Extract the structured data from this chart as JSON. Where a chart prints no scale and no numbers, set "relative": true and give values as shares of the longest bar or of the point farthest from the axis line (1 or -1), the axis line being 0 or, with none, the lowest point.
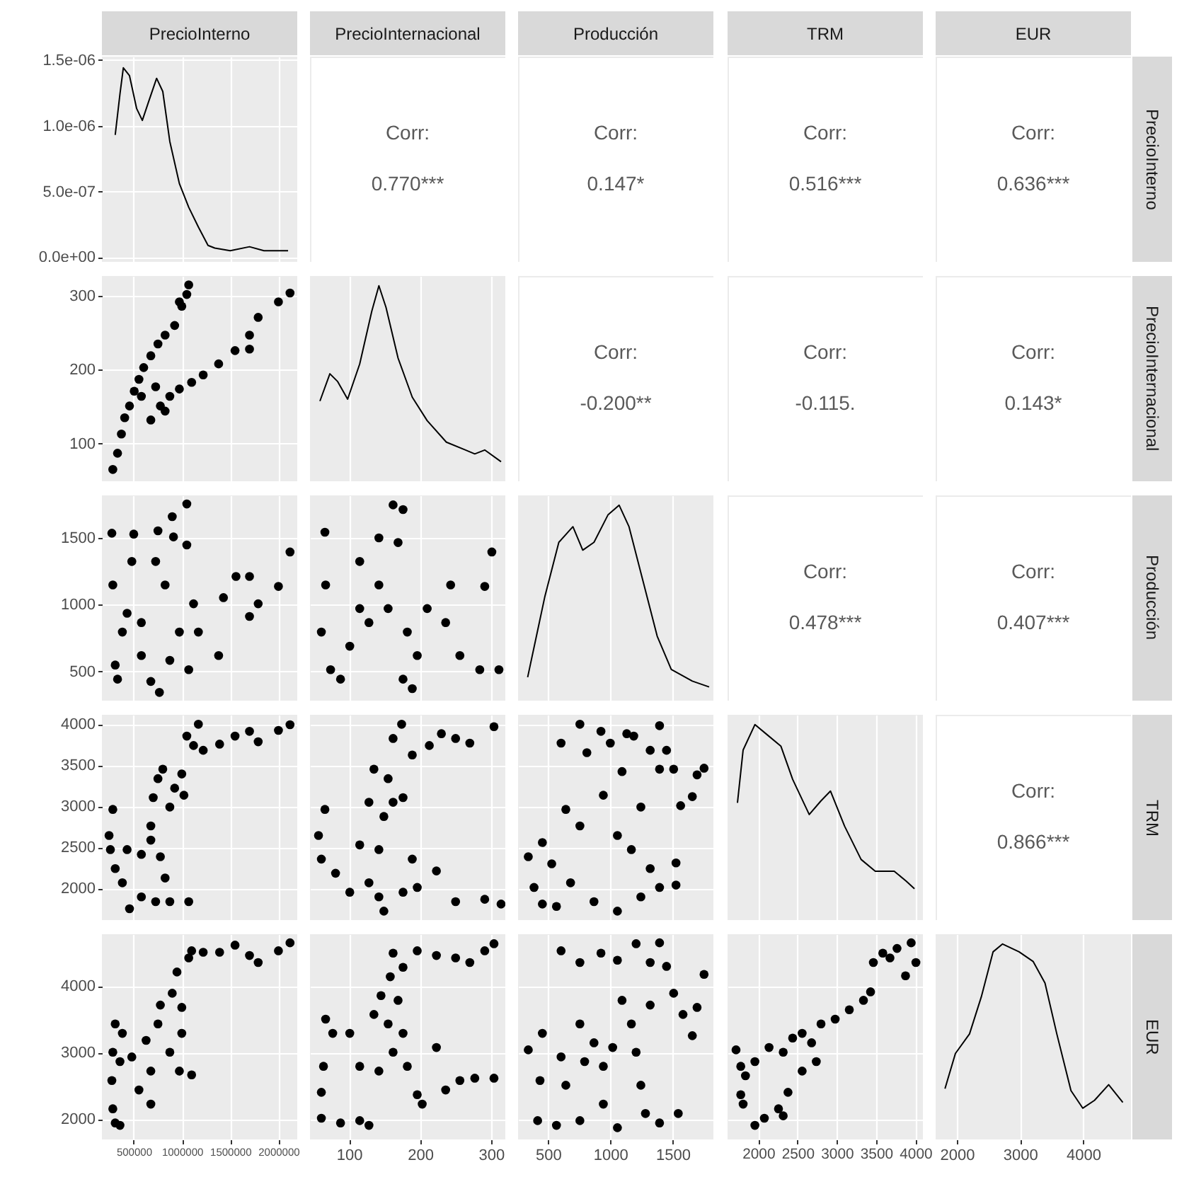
{
  "chart_data": [
    {
      "type": "line",
      "title": "PrecioInterno",
      "color": "#000000",
      "x": [
        308000,
        357000,
        392000,
        456000,
        530000,
        589000,
        653000,
        737000,
        801000,
        874000,
        973000,
        1070000,
        1170000,
        1270000,
        1340000,
        1500000,
        1700000,
        1850000,
        2040000,
        2100000
      ],
      "values": [
        9.3e-07,
        1.24e-06,
        1.44e-06,
        1.38e-06,
        1.13e-06,
        1.04e-06,
        1.18e-06,
        1.36e-06,
        1.26e-06,
        8.8e-07,
        5.6e-07,
        3.8e-07,
        2.3e-07,
        9e-08,
        7e-08,
        5e-08,
        8e-08,
        5e-08,
        5e-08,
        5e-08
      ],
      "xlim": [
        170000,
        2195000
      ],
      "ylim": [
        -3.5e-08,
        1.525e-06
      ],
      "xticks": [
        500000,
        1000000,
        1500000,
        2000000
      ],
      "yticks": [
        {
          "value": 0,
          "label": "0.0e+00"
        },
        {
          "value": 5e-07,
          "label": "5.0e-07"
        },
        {
          "value": 1e-06,
          "label": "1.0e-06"
        },
        {
          "value": 1.5e-06,
          "label": "1.5e-06"
        }
      ],
      "grid": true,
      "tick_labels": "y"
    },
    {
      "type": "other",
      "title": "PrecioInternacional",
      "annotations": [
        "Corr:",
        "0.770***"
      ]
    },
    {
      "type": "other",
      "title": "Producción",
      "annotations": [
        "Corr:",
        "0.147*"
      ]
    },
    {
      "type": "other",
      "title": "TRM",
      "annotations": [
        "Corr:",
        "0.516***"
      ]
    },
    {
      "type": "other",
      "title": "EUR",
      "y2label": "PrecioInterno",
      "annotations": [
        "Corr:",
        "0.636***"
      ]
    },
    {
      "type": "scatter",
      "marker": "circle",
      "color": "#000000",
      "x": [
        283000,
        332000,
        372000,
        406000,
        456000,
        505000,
        554000,
        603000,
        677000,
        751000,
        825000,
        924000,
        998000,
        1050000,
        1070000,
        973000,
        677000,
        776000,
        874000,
        973000,
        1100000,
        1220000,
        825000,
        579000,
        727000,
        1380000,
        1550000,
        1700000,
        1700000,
        1790000,
        2000000,
        2120000
      ],
      "values": [
        65,
        87,
        113,
        135,
        151,
        171,
        187,
        203,
        219,
        235,
        247,
        260,
        286,
        302,
        315,
        292,
        132,
        151,
        164,
        174,
        183,
        193,
        144,
        164,
        177,
        208,
        226,
        228,
        247,
        271,
        292,
        304
      ],
      "xlim": [
        170000,
        2195000
      ],
      "ylim": [
        49,
        327
      ],
      "xticks": [
        500000,
        1000000,
        1500000,
        2000000
      ],
      "yticks": [
        100,
        200,
        300
      ],
      "grid": true,
      "tick_labels": "y"
    },
    {
      "type": "line",
      "relative": true,
      "color": "#000000",
      "x": [
        59,
        73,
        84,
        98,
        115,
        132,
        142,
        152,
        169,
        189,
        210,
        237,
        264,
        277,
        291,
        314
      ],
      "values": [
        0.41,
        0.55,
        0.51,
        0.42,
        0.6,
        0.87,
        1,
        0.89,
        0.63,
        0.43,
        0.31,
        0.2,
        0.16,
        0.14,
        0.16,
        0.1
      ],
      "xlim": [
        45,
        320
      ],
      "xticks": [
        100,
        200,
        300
      ],
      "grid": "x",
      "tick_labels": false
    },
    {
      "type": "other",
      "annotations": [
        "Corr:",
        "-0.200**"
      ]
    },
    {
      "type": "other",
      "annotations": [
        "Corr:",
        "-0.115."
      ]
    },
    {
      "type": "other",
      "y2label": "PrecioInternacional",
      "annotations": [
        "Corr:",
        "0.143*"
      ]
    },
    {
      "type": "scatter",
      "marker": "circle",
      "color": "#000000",
      "x": [
        273000,
        500000,
        751000,
        899000,
        1050000,
        912000,
        1050000,
        283000,
        382000,
        308000,
        332000,
        579000,
        677000,
        766000,
        480000,
        727000,
        825000,
        579000,
        431000,
        973000,
        1120000,
        1170000,
        1070000,
        1380000,
        1430000,
        1560000,
        1700000,
        1790000,
        1700000,
        2000000,
        2120000,
        874000
      ],
      "values": [
        1535,
        1528,
        1553,
        1659,
        1754,
        1507,
        1447,
        1147,
        794,
        547,
        441,
        618,
        424,
        342,
        1323,
        1323,
        1147,
        865,
        935,
        794,
        1006,
        794,
        512,
        618,
        1052,
        1211,
        1211,
        1006,
        911,
        1136,
        1394,
        582
      ],
      "xlim": [
        170000,
        2195000
      ],
      "ylim": [
        280,
        1818
      ],
      "xticks": [
        500000,
        1000000,
        1500000,
        2000000
      ],
      "yticks": [
        500,
        1000,
        1500
      ],
      "grid": true,
      "tick_labels": "y"
    },
    {
      "type": "scatter",
      "marker": "circle",
      "color": "#000000",
      "x": [
        66,
        67,
        61,
        74,
        88,
        115,
        142,
        162,
        176,
        169,
        142,
        128,
        155,
        182,
        196,
        176,
        189,
        210,
        243,
        236,
        256,
        291,
        301,
        311,
        284,
        115,
        101
      ],
      "values": [
        1542,
        1147,
        794,
        512,
        441,
        1323,
        1500,
        1747,
        1712,
        1465,
        1147,
        865,
        970,
        794,
        618,
        441,
        370,
        970,
        1147,
        865,
        618,
        1136,
        1394,
        512,
        512,
        970,
        688
      ],
      "xlim": [
        45,
        320
      ],
      "ylim": [
        280,
        1818
      ],
      "xticks": [
        100,
        200,
        300
      ],
      "yticks": [
        500,
        1000,
        1500
      ],
      "grid": true,
      "tick_labels": false
    },
    {
      "type": "line",
      "relative": true,
      "color": "#000000",
      "x": [
        337,
        474,
        587,
        700,
        779,
        869,
        981,
        1071,
        1150,
        1263,
        1376,
        1489,
        1658,
        1793
      ],
      "values": [
        0.12,
        0.53,
        0.81,
        0.89,
        0.77,
        0.81,
        0.95,
        1,
        0.89,
        0.61,
        0.33,
        0.16,
        0.1,
        0.07
      ],
      "xlim": [
        260,
        1827
      ],
      "xticks": [
        500,
        1000,
        1500
      ],
      "grid": "x",
      "tick_labels": false
    },
    {
      "type": "other",
      "annotations": [
        "Corr:",
        "0.478***"
      ]
    },
    {
      "type": "other",
      "y2label": "Producción",
      "annotations": [
        "Corr:",
        "0.407***"
      ]
    },
    {
      "type": "scatter",
      "marker": "circle",
      "color": "#000000",
      "x": [
        283000,
        244000,
        258000,
        308000,
        382000,
        456000,
        579000,
        727000,
        874000,
        1070000,
        825000,
        677000,
        579000,
        776000,
        431000,
        677000,
        702000,
        751000,
        801000,
        874000,
        924000,
        1020000,
        998000,
        1050000,
        1170000,
        1120000,
        1220000,
        1390000,
        1550000,
        1700000,
        1790000,
        2000000,
        2120000
      ],
      "values": [
        2963,
        2646,
        2474,
        2243,
        2070,
        1754,
        1898,
        1840,
        1840,
        1840,
        2128,
        2589,
        2416,
        2387,
        2474,
        2762,
        3107,
        3338,
        3453,
        2992,
        3222,
        3136,
        3395,
        3856,
        4000,
        3741,
        3683,
        3758,
        3856,
        3914,
        3787,
        3925,
        3994
      ],
      "xlim": [
        170000,
        2195000
      ],
      "ylim": [
        1616,
        4115
      ],
      "xticks": [
        500000,
        1000000,
        1500000,
        2000000
      ],
      "yticks": [
        2000,
        2500,
        3000,
        3500,
        4000
      ],
      "grid": true,
      "tick_labels": "y"
    },
    {
      "type": "scatter",
      "marker": "circle",
      "color": "#000000",
      "x": [
        66,
        57,
        61,
        81,
        101,
        128,
        142,
        149,
        176,
        196,
        223,
        250,
        291,
        314,
        115,
        142,
        189,
        128,
        135,
        149,
        162,
        176,
        155,
        174,
        162,
        189,
        213,
        230,
        250,
        270,
        304
      ],
      "values": [
        2963,
        2646,
        2358,
        2186,
        1955,
        2070,
        1898,
        1725,
        1955,
        2013,
        2214,
        1840,
        1869,
        1811,
        2531,
        2474,
        2358,
        3050,
        3453,
        2877,
        3050,
        3107,
        3338,
        4000,
        3827,
        3626,
        3741,
        3885,
        3827,
        3770,
        3971
      ],
      "xlim": [
        45,
        320
      ],
      "ylim": [
        1616,
        4115
      ],
      "xticks": [
        100,
        200,
        300
      ],
      "yticks": [
        2000,
        2500,
        3000,
        3500,
        4000
      ],
      "grid": true,
      "tick_labels": false
    },
    {
      "type": "scatter",
      "marker": "circle",
      "color": "#000000",
      "x": [
        342,
        455,
        388,
        455,
        605,
        756,
        812,
        925,
        1000,
        1132,
        1188,
        1395,
        1451,
        1320,
        1696,
        1752,
        1658,
        1564,
        1508,
        1395,
        1094,
        944,
        1245,
        756,
        643,
        1057,
        1169,
        1320,
        1527,
        530,
        681,
        869,
        1057,
        1245,
        568,
        1395,
        1527
      ],
      "values": [
        2387,
        2560,
        2013,
        1811,
        3770,
        4000,
        3654,
        3914,
        3770,
        3885,
        3856,
        3983,
        3683,
        3683,
        3384,
        3465,
        3119,
        3009,
        3453,
        3453,
        3424,
        3136,
        2992,
        2762,
        2963,
        2646,
        2474,
        2243,
        2042,
        2301,
        2070,
        1840,
        1725,
        1898,
        1782,
        2013,
        2312
      ],
      "xlim": [
        260,
        1827
      ],
      "ylim": [
        1616,
        4115
      ],
      "xticks": [
        500,
        1000,
        1500
      ],
      "yticks": [
        2000,
        2500,
        3000,
        3500,
        4000
      ],
      "grid": true,
      "tick_labels": false
    },
    {
      "type": "line",
      "relative": true,
      "color": "#000000",
      "x": [
        1736,
        1808,
        1958,
        2108,
        2288,
        2438,
        2649,
        2799,
        2919,
        3099,
        3309,
        3489,
        3730,
        3880,
        3988
      ],
      "values": [
        0.6,
        0.87,
        1,
        0.95,
        0.89,
        0.72,
        0.54,
        0.61,
        0.66,
        0.48,
        0.31,
        0.25,
        0.25,
        0.2,
        0.16
      ],
      "xlim": [
        1610,
        4095
      ],
      "xticks": [
        2000,
        2500,
        3000,
        3500,
        4000
      ],
      "grid": "x",
      "tick_labels": false
    },
    {
      "type": "other",
      "y2label": "TRM",
      "annotations": [
        "Corr:",
        "0.866***"
      ]
    },
    {
      "type": "scatter",
      "marker": "circle",
      "color": "#000000",
      "x": [
        283000,
        308000,
        357000,
        273000,
        308000,
        283000,
        382000,
        480000,
        554000,
        677000,
        677000,
        628000,
        751000,
        776000,
        899000,
        874000,
        973000,
        1100000,
        998000,
        998000,
        948000,
        1070000,
        1100000,
        1220000,
        1390000,
        1550000,
        1700000,
        1790000,
        2000000,
        2120000,
        357000
      ],
      "values": [
        2157,
        1944,
        1908,
        2582,
        3433,
        3007,
        3291,
        2936,
        2440,
        2227,
        2724,
        3185,
        3433,
        3716,
        3894,
        3007,
        2724,
        2667,
        3681,
        3291,
        4213,
        4425,
        4532,
        4510,
        4510,
        4617,
        4461,
        4355,
        4532,
        4652,
        2866
      ],
      "xlim": [
        170000,
        2195000
      ],
      "ylim": [
        1696,
        4781
      ],
      "xticks": [
        500000,
        1000000,
        1500000,
        2000000
      ],
      "yticks": [
        2000,
        3000,
        4000
      ],
      "grid": true
    },
    {
      "type": "scatter",
      "marker": "circle",
      "color": "#000000",
      "x": [
        61,
        61,
        64,
        67,
        77,
        101,
        115,
        88,
        115,
        128,
        142,
        135,
        145,
        155,
        162,
        176,
        169,
        182,
        196,
        203,
        223,
        236,
        256,
        277,
        304,
        162,
        176,
        196,
        223,
        250,
        270,
        304,
        291,
        158
      ],
      "values": [
        2015,
        2405,
        2795,
        3504,
        3291,
        3291,
        2795,
        1944,
        1979,
        1908,
        2724,
        3575,
        3858,
        3433,
        3007,
        3291,
        3787,
        2795,
        2369,
        2227,
        3078,
        2440,
        2582,
        2617,
        2617,
        4496,
        4284,
        4532,
        4461,
        4425,
        4355,
        4638,
        4532,
        4142
      ],
      "xlim": [
        45,
        320
      ],
      "ylim": [
        1696,
        4781
      ],
      "xticks": [
        100,
        200,
        300
      ],
      "yticks": [
        2000,
        3000,
        4000
      ],
      "grid": true,
      "tick_labels": "x"
    },
    {
      "type": "scatter",
      "marker": "circle",
      "color": "#000000",
      "x": [
        342,
        455,
        436,
        417,
        568,
        756,
        643,
        605,
        756,
        869,
        944,
        1019,
        1094,
        1169,
        1207,
        1245,
        1282,
        1395,
        1320,
        1508,
        1583,
        1696,
        1658,
        1545,
        605,
        756,
        925,
        1057,
        1207,
        1320,
        1395,
        1451,
        1752,
        944,
        794,
        1057
      ],
      "values": [
        3043,
        3291,
        2582,
        1979,
        1908,
        1979,
        2511,
        2937,
        3433,
        3149,
        2795,
        3078,
        3787,
        3433,
        3007,
        2511,
        2086,
        1944,
        3716,
        3894,
        3575,
        3681,
        3256,
        2086,
        4532,
        4355,
        4496,
        4390,
        4638,
        4355,
        4652,
        4298,
        4177,
        2227,
        2866,
        1873
      ],
      "xlim": [
        260,
        1827
      ],
      "ylim": [
        1696,
        4781
      ],
      "xticks": [
        500,
        1000,
        1500
      ],
      "yticks": [
        2000,
        3000,
        4000
      ],
      "grid": true,
      "tick_labels": "x"
    },
    {
      "type": "scatter",
      "marker": "circle",
      "color": "#000000",
      "x": [
        1718,
        1778,
        1778,
        1808,
        1838,
        1958,
        2138,
        2318,
        2438,
        2559,
        2679,
        2799,
        2979,
        3159,
        3339,
        3429,
        2739,
        2559,
        2379,
        1958,
        2078,
        2258,
        2318,
        3465,
        3585,
        3766,
        3946,
        4006,
        3874,
        3676
      ],
      "values": [
        3043,
        2795,
        2369,
        2227,
        2653,
        2866,
        3078,
        3007,
        3220,
        3291,
        3149,
        3433,
        3504,
        3645,
        3787,
        3915,
        2866,
        2724,
        2405,
        1908,
        2015,
        2157,
        2051,
        4355,
        4496,
        4567,
        4652,
        4355,
        4156,
        4425
      ],
      "xlim": [
        1610,
        4095
      ],
      "ylim": [
        1696,
        4781
      ],
      "xticks": [
        2000,
        2500,
        3000,
        3500,
        4000
      ],
      "yticks": [
        2000,
        3000,
        4000
      ],
      "grid": true,
      "tick_labels": "x"
    },
    {
      "type": "line",
      "relative": true,
      "y2label": "EUR",
      "color": "#000000",
      "x": [
        1813,
        1978,
        2201,
        2388,
        2574,
        2724,
        2985,
        3209,
        3395,
        3582,
        3806,
        3992,
        4178,
        4402,
        4626
      ],
      "values": [
        0.26,
        0.44,
        0.54,
        0.73,
        0.96,
        1,
        0.96,
        0.91,
        0.8,
        0.54,
        0.25,
        0.16,
        0.2,
        0.28,
        0.19
      ],
      "xlim": [
        1665,
        4755
      ],
      "xticks": [
        2000,
        3000,
        4000
      ],
      "grid": "x",
      "tick_labels": "x"
    }
  ]
}
